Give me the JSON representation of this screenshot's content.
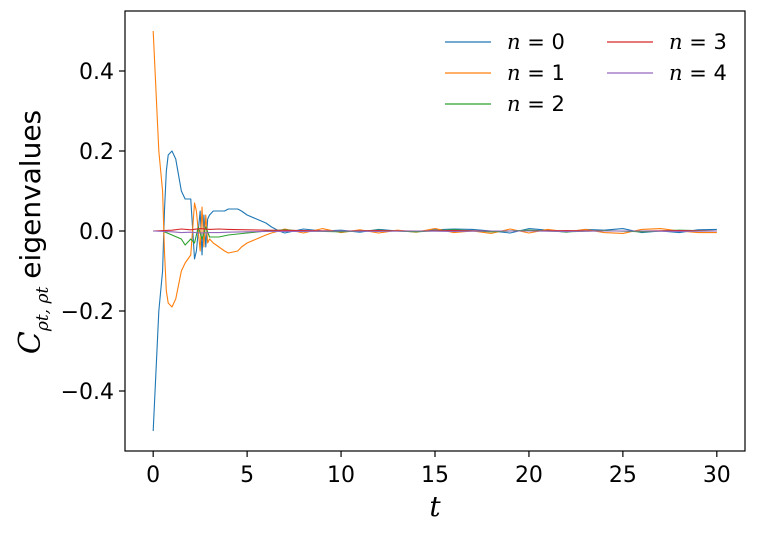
{
  "chart_data": {
    "type": "line",
    "xlabel": "t",
    "ylabel": {
      "prefix": "C",
      "subscript": "ρt, ρt",
      "suffix": "eigenvalues"
    },
    "xlim": [
      -1.5,
      31.5
    ],
    "ylim": [
      -0.55,
      0.55
    ],
    "xticks": [
      0,
      5,
      10,
      15,
      20,
      25,
      30
    ],
    "xtick_labels": [
      "0",
      "5",
      "10",
      "15",
      "20",
      "25",
      "30"
    ],
    "yticks": [
      -0.4,
      -0.2,
      0.0,
      0.2,
      0.4
    ],
    "ytick_labels": [
      "−0.4",
      "−0.2",
      "0.0",
      "0.2",
      "0.4"
    ],
    "grid": false,
    "legend": {
      "placement": "top-right",
      "columns": 2
    },
    "series": [
      {
        "name": "n = 0",
        "color": "#1f77b4",
        "x": [
          0,
          0.3,
          0.5,
          0.6,
          0.7,
          0.8,
          1.0,
          1.2,
          1.5,
          1.7,
          2.0,
          2.2,
          2.3,
          2.5,
          2.6,
          2.7,
          2.8,
          2.9,
          3.0,
          3.2,
          3.5,
          3.8,
          4.0,
          4.5,
          4.7,
          5.0,
          5.5,
          6.0,
          6.3,
          6.7,
          7.0,
          8,
          9,
          10,
          11,
          12,
          13,
          14,
          15,
          16,
          17,
          18,
          19,
          20,
          21,
          22,
          23,
          24,
          25,
          26,
          27,
          28,
          29,
          30
        ],
        "y": [
          -0.5,
          -0.2,
          -0.1,
          0.05,
          0.15,
          0.19,
          0.2,
          0.18,
          0.1,
          0.08,
          0.08,
          -0.07,
          -0.05,
          0.05,
          -0.06,
          0.04,
          -0.04,
          0.03,
          0.04,
          0.05,
          0.05,
          0.05,
          0.055,
          0.055,
          0.05,
          0.04,
          0.03,
          0.02,
          0.01,
          0.0,
          -0.005,
          0.005,
          0.0,
          0.002,
          -0.003,
          0.004,
          0.0,
          -0.002,
          0.003,
          0.005,
          0.004,
          0.0,
          -0.005,
          0.006,
          0.002,
          -0.003,
          0.004,
          0.002,
          0.006,
          -0.004,
          0.0,
          -0.004,
          0.003,
          0.004
        ]
      },
      {
        "name": "n = 1",
        "color": "#ff7f0e",
        "x": [
          0,
          0.3,
          0.5,
          0.6,
          0.7,
          0.8,
          1.0,
          1.2,
          1.5,
          1.7,
          2.0,
          2.2,
          2.3,
          2.5,
          2.6,
          2.7,
          2.8,
          2.9,
          3.0,
          3.2,
          3.5,
          3.8,
          4.0,
          4.5,
          4.7,
          5.0,
          5.5,
          6.0,
          6.3,
          6.7,
          7.0,
          8,
          9,
          10,
          11,
          12,
          13,
          14,
          15,
          16,
          17,
          18,
          19,
          20,
          21,
          22,
          23,
          24,
          25,
          26,
          27,
          28,
          29,
          30
        ],
        "y": [
          0.5,
          0.2,
          0.1,
          -0.05,
          -0.15,
          -0.18,
          -0.19,
          -0.17,
          -0.1,
          -0.08,
          -0.06,
          0.07,
          0.05,
          -0.05,
          0.06,
          -0.04,
          0.04,
          -0.03,
          -0.02,
          -0.03,
          -0.04,
          -0.05,
          -0.055,
          -0.05,
          -0.04,
          -0.03,
          -0.02,
          -0.01,
          -0.005,
          0.0,
          0.005,
          -0.005,
          0.006,
          -0.004,
          0.003,
          -0.005,
          0.002,
          -0.003,
          0.006,
          -0.004,
          0.0,
          -0.006,
          0.005,
          -0.005,
          0.004,
          -0.002,
          0.004,
          -0.004,
          -0.006,
          0.004,
          0.006,
          0.0,
          -0.004,
          -0.004
        ]
      },
      {
        "name": "n = 2",
        "color": "#2ca02c",
        "x": [
          0,
          0.5,
          1.0,
          1.5,
          1.7,
          2.0,
          2.2,
          2.4,
          2.6,
          2.8,
          3.0,
          3.5,
          4.0,
          5.0,
          6.0,
          7.0,
          8,
          10,
          12,
          14,
          16,
          18,
          20,
          22,
          24,
          26,
          28,
          30
        ],
        "y": [
          0.0,
          0.0,
          -0.01,
          -0.02,
          -0.035,
          -0.02,
          -0.03,
          0.01,
          -0.02,
          0.01,
          -0.015,
          -0.015,
          -0.01,
          -0.005,
          0.0,
          0.003,
          0.0,
          -0.002,
          0.002,
          -0.002,
          0.003,
          -0.002,
          0.002,
          -0.002,
          0.001,
          -0.002,
          0.002,
          0.0
        ]
      },
      {
        "name": "n = 3",
        "color": "#d62728",
        "x": [
          0,
          1.0,
          1.5,
          2.0,
          2.5,
          3.0,
          3.5,
          4.0,
          5.0,
          6.0,
          8,
          10,
          12,
          14,
          16,
          18,
          20,
          22,
          24,
          26,
          28,
          30
        ],
        "y": [
          0.0,
          0.002,
          0.005,
          0.003,
          0.006,
          0.004,
          0.005,
          0.004,
          0.003,
          0.002,
          0.001,
          0.0,
          0.001,
          0.0,
          0.001,
          0.0,
          0.0,
          0.001,
          0.0,
          0.0,
          0.001,
          0.0
        ]
      },
      {
        "name": "n = 4",
        "color": "#9467bd",
        "x": [
          0,
          1.0,
          1.5,
          2.0,
          2.5,
          3.0,
          3.5,
          4.0,
          5.0,
          6.0,
          8,
          10,
          12,
          14,
          16,
          18,
          20,
          22,
          24,
          26,
          28,
          30
        ],
        "y": [
          0.0,
          -0.002,
          -0.004,
          -0.003,
          -0.005,
          -0.004,
          -0.004,
          -0.003,
          -0.002,
          -0.001,
          -0.001,
          0.0,
          -0.001,
          0.0,
          -0.001,
          0.0,
          0.0,
          -0.001,
          0.0,
          0.0,
          -0.001,
          0.0
        ]
      }
    ]
  }
}
